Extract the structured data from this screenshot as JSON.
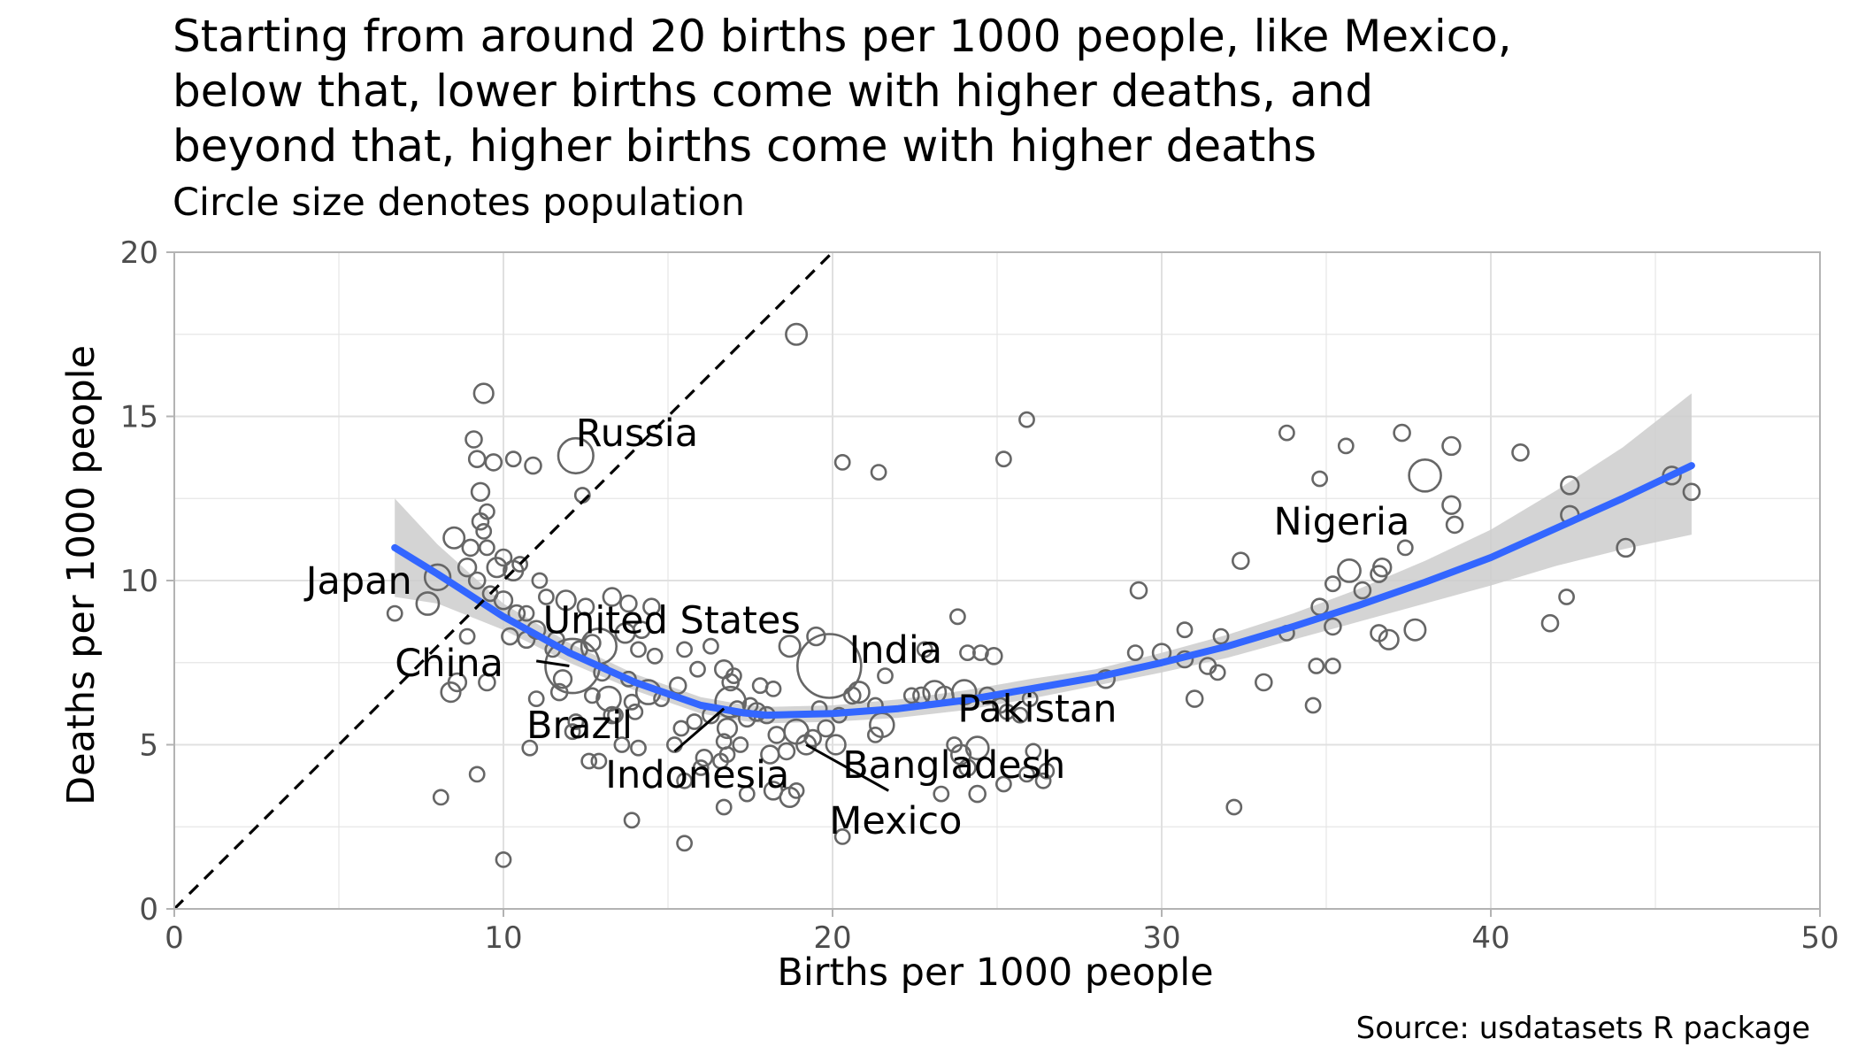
{
  "chart_data": {
    "type": "scatter",
    "title": "Starting from around 20 births per 1000 people, like Mexico, below that, lower births come with higher deaths, and beyond that, higher births come with higher deaths",
    "title_lines": [
      "Starting from around 20 births per 1000 people, like Mexico,",
      "below that, lower births come with higher deaths, and",
      "beyond that, higher births come with higher deaths"
    ],
    "subtitle": "Circle size denotes population",
    "caption": "Source: usdatasets R package",
    "xlabel": "Births per 1000 people",
    "ylabel": "Deaths per 1000 people",
    "xlim": [
      0,
      50
    ],
    "ylim": [
      0,
      20
    ],
    "xticks": [
      0,
      10,
      20,
      30,
      40,
      50
    ],
    "yticks": [
      0,
      5,
      10,
      15,
      20
    ],
    "grid": true,
    "reference_line": {
      "type": "y = x",
      "style": "dashed",
      "color": "#000000"
    },
    "colors": {
      "smooth": "#3366FF",
      "confidence_band": "#CCCCCC",
      "points": "#666666",
      "grid": "#E6E6E6"
    },
    "smooth": {
      "x": [
        6.7,
        8,
        10,
        12,
        14,
        16,
        17.3,
        18,
        20,
        22,
        24,
        26,
        28,
        30,
        32,
        34,
        36,
        38,
        40,
        42,
        44,
        46.1
      ],
      "y": [
        11.0,
        10.2,
        8.9,
        7.8,
        6.9,
        6.2,
        5.97,
        5.9,
        5.95,
        6.1,
        6.35,
        6.7,
        7.05,
        7.5,
        8.0,
        8.6,
        9.25,
        9.95,
        10.7,
        11.6,
        12.5,
        13.5
      ],
      "lower": [
        9.5,
        9.3,
        8.5,
        7.5,
        6.65,
        5.95,
        5.72,
        5.65,
        5.7,
        5.82,
        6.05,
        6.4,
        6.8,
        7.2,
        7.65,
        8.2,
        8.75,
        9.3,
        9.85,
        10.45,
        10.95,
        11.4
      ],
      "upper": [
        12.5,
        11.1,
        9.3,
        8.1,
        7.15,
        6.45,
        6.22,
        6.15,
        6.2,
        6.38,
        6.65,
        7.0,
        7.3,
        7.8,
        8.35,
        9.0,
        9.75,
        10.6,
        11.55,
        12.75,
        14.05,
        15.7
      ]
    },
    "labels": [
      {
        "text": "Russia",
        "x": 12.2,
        "y": 13.8,
        "lx": 12.2,
        "ly": 14.5,
        "anchor": "start"
      },
      {
        "text": "Japan",
        "x": 8.0,
        "y": 10.1,
        "lx": 4.0,
        "ly": 10.0,
        "anchor": "start"
      },
      {
        "text": "United States",
        "x": 12.9,
        "y": 8.0,
        "lx": 11.2,
        "ly": 8.8,
        "anchor": "start"
      },
      {
        "text": "China",
        "x": 12.1,
        "y": 7.4,
        "lx": 6.7,
        "ly": 7.5,
        "anchor": "start"
      },
      {
        "text": "Brazil",
        "x": 13.2,
        "y": 6.4,
        "lx": 10.7,
        "ly": 5.6,
        "anchor": "start"
      },
      {
        "text": "Indonesia",
        "x": 16.9,
        "y": 6.3,
        "lx": 13.1,
        "ly": 4.1,
        "anchor": "start"
      },
      {
        "text": "India",
        "x": 19.9,
        "y": 7.4,
        "lx": 20.5,
        "ly": 7.9,
        "anchor": "start"
      },
      {
        "text": "Pakistan",
        "x": 24.0,
        "y": 6.6,
        "lx": 23.8,
        "ly": 6.1,
        "anchor": "start"
      },
      {
        "text": "Bangladesh",
        "x": 18.9,
        "y": 5.4,
        "lx": 20.3,
        "ly": 4.4,
        "anchor": "start"
      },
      {
        "text": "Mexico",
        "x": 19.2,
        "y": 5.0,
        "lx": 19.9,
        "ly": 2.7,
        "anchor": "start"
      },
      {
        "text": "Nigeria",
        "x": 38.0,
        "y": 13.2,
        "lx": 33.4,
        "ly": 11.8,
        "anchor": "start"
      }
    ],
    "label_segments": [
      {
        "from": [
          11.0,
          7.55
        ],
        "to": [
          12.0,
          7.4
        ]
      },
      {
        "from": [
          15.2,
          4.8
        ],
        "to": [
          16.7,
          6.1
        ]
      },
      {
        "from": [
          19.2,
          5.0
        ],
        "to": [
          21.7,
          3.6
        ]
      }
    ],
    "points": [
      [
        9.4,
        15.7,
        1.2
      ],
      [
        18.9,
        17.5,
        1.3
      ],
      [
        12.2,
        13.8,
        2.2
      ],
      [
        38.0,
        13.2,
        2.0
      ],
      [
        19.9,
        7.4,
        4.0
      ],
      [
        12.1,
        7.4,
        3.4
      ],
      [
        12.9,
        8.0,
        2.2
      ],
      [
        16.9,
        6.3,
        1.9
      ],
      [
        13.2,
        6.4,
        1.5
      ],
      [
        24.0,
        6.6,
        1.5
      ],
      [
        18.9,
        5.4,
        1.5
      ],
      [
        19.2,
        5.0,
        1.2
      ],
      [
        8.0,
        10.1,
        1.6
      ],
      [
        7.7,
        9.3,
        1.4
      ],
      [
        6.7,
        9.0,
        0.9
      ],
      [
        9.1,
        14.3,
        1.0
      ],
      [
        9.2,
        13.7,
        1.0
      ],
      [
        9.7,
        13.6,
        1.0
      ],
      [
        10.3,
        13.7,
        0.9
      ],
      [
        10.9,
        13.5,
        1.0
      ],
      [
        12.4,
        12.6,
        0.9
      ],
      [
        9.3,
        12.7,
        1.1
      ],
      [
        9.5,
        12.1,
        0.9
      ],
      [
        9.3,
        11.8,
        1.0
      ],
      [
        9.4,
        11.5,
        0.9
      ],
      [
        8.5,
        11.3,
        1.3
      ],
      [
        9.0,
        11.0,
        1.0
      ],
      [
        8.9,
        10.4,
        1.1
      ],
      [
        9.2,
        10.0,
        1.0
      ],
      [
        9.8,
        10.4,
        1.2
      ],
      [
        10.0,
        10.7,
        1.0
      ],
      [
        10.3,
        10.3,
        1.2
      ],
      [
        10.5,
        10.5,
        0.9
      ],
      [
        9.5,
        11.0,
        0.9
      ],
      [
        10.0,
        9.4,
        1.1
      ],
      [
        10.4,
        9.0,
        1.0
      ],
      [
        10.2,
        8.3,
        1.0
      ],
      [
        10.7,
        8.2,
        1.0
      ],
      [
        8.9,
        8.3,
        0.9
      ],
      [
        9.6,
        9.6,
        0.9
      ],
      [
        11.1,
        10.0,
        0.9
      ],
      [
        11.3,
        9.5,
        0.9
      ],
      [
        11.9,
        9.4,
        1.2
      ],
      [
        12.5,
        9.2,
        1.0
      ],
      [
        13.3,
        9.5,
        1.1
      ],
      [
        13.8,
        9.3,
        1.0
      ],
      [
        14.5,
        9.2,
        1.0
      ],
      [
        11.0,
        8.5,
        1.1
      ],
      [
        11.6,
        8.2,
        1.0
      ],
      [
        12.3,
        7.9,
        1.0
      ],
      [
        12.7,
        8.1,
        1.0
      ],
      [
        13.7,
        8.4,
        1.2
      ],
      [
        14.2,
        8.5,
        1.0
      ],
      [
        14.1,
        7.9,
        0.9
      ],
      [
        14.6,
        7.7,
        0.9
      ],
      [
        15.5,
        7.9,
        0.9
      ],
      [
        16.3,
        8.0,
        0.9
      ],
      [
        13.0,
        7.2,
        1.0
      ],
      [
        13.8,
        7.0,
        0.9
      ],
      [
        14.4,
        6.6,
        1.5
      ],
      [
        14.8,
        6.4,
        0.9
      ],
      [
        15.3,
        6.8,
        1.0
      ],
      [
        15.9,
        7.3,
        0.9
      ],
      [
        16.7,
        7.3,
        1.1
      ],
      [
        16.9,
        6.9,
        1.0
      ],
      [
        11.8,
        7.0,
        1.1
      ],
      [
        13.3,
        5.9,
        1.0
      ],
      [
        12.1,
        5.4,
        0.9
      ],
      [
        12.6,
        4.5,
        0.9
      ],
      [
        12.9,
        4.5,
        0.9
      ],
      [
        13.6,
        5.0,
        0.9
      ],
      [
        13.9,
        6.3,
        0.9
      ],
      [
        15.4,
        5.5,
        0.9
      ],
      [
        15.8,
        5.7,
        0.9
      ],
      [
        16.3,
        5.9,
        1.0
      ],
      [
        16.7,
        5.1,
        0.9
      ],
      [
        16.8,
        5.5,
        1.2
      ],
      [
        17.2,
        5.0,
        0.9
      ],
      [
        17.4,
        5.8,
        1.0
      ],
      [
        17.7,
        6.0,
        1.1
      ],
      [
        15.5,
        3.9,
        0.9
      ],
      [
        16.1,
        4.6,
        1.0
      ],
      [
        16.6,
        4.5,
        0.9
      ],
      [
        17.4,
        3.5,
        0.9
      ],
      [
        17.8,
        6.8,
        0.9
      ],
      [
        18.2,
        6.7,
        0.9
      ],
      [
        18.0,
        5.9,
        1.0
      ],
      [
        18.3,
        5.3,
        1.0
      ],
      [
        18.6,
        4.8,
        1.0
      ],
      [
        18.1,
        4.7,
        1.1
      ],
      [
        18.2,
        3.6,
        1.1
      ],
      [
        18.7,
        3.4,
        1.2
      ],
      [
        18.9,
        3.6,
        0.9
      ],
      [
        18.7,
        8.0,
        1.3
      ],
      [
        19.5,
        8.3,
        1.1
      ],
      [
        19.6,
        6.1,
        0.9
      ],
      [
        19.8,
        5.5,
        1.0
      ],
      [
        20.1,
        5.0,
        1.2
      ],
      [
        20.2,
        5.9,
        0.9
      ],
      [
        20.6,
        6.5,
        1.0
      ],
      [
        20.8,
        6.6,
        1.3
      ],
      [
        21.3,
        6.2,
        0.9
      ],
      [
        21.5,
        5.6,
        1.5
      ],
      [
        21.6,
        7.1,
        0.9
      ],
      [
        21.3,
        5.3,
        0.9
      ],
      [
        20.3,
        2.2,
        0.9
      ],
      [
        20.3,
        13.6,
        0.9
      ],
      [
        21.4,
        13.3,
        0.9
      ],
      [
        16.7,
        3.1,
        0.9
      ],
      [
        22.8,
        7.9,
        0.9
      ],
      [
        22.7,
        6.5,
        1.0
      ],
      [
        23.1,
        6.6,
        1.4
      ],
      [
        23.4,
        6.5,
        1.1
      ],
      [
        23.7,
        5.0,
        0.9
      ],
      [
        23.9,
        4.7,
        1.2
      ],
      [
        24.1,
        4.3,
        1.0
      ],
      [
        24.4,
        4.9,
        1.4
      ],
      [
        24.4,
        3.5,
        1.0
      ],
      [
        23.3,
        3.5,
        0.9
      ],
      [
        23.8,
        8.9,
        0.9
      ],
      [
        24.1,
        7.8,
        0.9
      ],
      [
        24.5,
        7.8,
        0.9
      ],
      [
        24.9,
        7.7,
        1.0
      ],
      [
        25.1,
        6.2,
        0.9
      ],
      [
        25.3,
        6.0,
        0.9
      ],
      [
        25.2,
        3.8,
        0.9
      ],
      [
        25.7,
        5.9,
        0.9
      ],
      [
        25.9,
        4.1,
        0.9
      ],
      [
        26.1,
        4.8,
        0.9
      ],
      [
        26.4,
        3.9,
        0.9
      ],
      [
        26.5,
        4.2,
        0.9
      ],
      [
        25.2,
        13.7,
        0.9
      ],
      [
        25.9,
        14.9,
        0.9
      ],
      [
        28.3,
        7.0,
        1.1
      ],
      [
        29.2,
        7.8,
        0.9
      ],
      [
        29.3,
        9.7,
        1.0
      ],
      [
        30.0,
        7.8,
        1.1
      ],
      [
        30.7,
        7.6,
        1.0
      ],
      [
        30.7,
        8.5,
        0.9
      ],
      [
        31.0,
        6.4,
        1.0
      ],
      [
        31.4,
        7.4,
        1.0
      ],
      [
        31.7,
        7.2,
        0.9
      ],
      [
        31.8,
        8.3,
        0.9
      ],
      [
        32.2,
        3.1,
        0.9
      ],
      [
        32.4,
        10.6,
        1.0
      ],
      [
        33.1,
        6.9,
        1.0
      ],
      [
        33.8,
        8.4,
        0.9
      ],
      [
        33.8,
        14.5,
        0.9
      ],
      [
        34.6,
        6.2,
        0.9
      ],
      [
        34.7,
        7.4,
        0.9
      ],
      [
        34.8,
        9.2,
        1.0
      ],
      [
        34.8,
        13.1,
        0.9
      ],
      [
        35.2,
        9.9,
        0.9
      ],
      [
        35.2,
        8.6,
        1.0
      ],
      [
        35.2,
        7.4,
        0.9
      ],
      [
        35.6,
        14.1,
        0.9
      ],
      [
        35.7,
        10.3,
        1.4
      ],
      [
        36.1,
        9.7,
        1.0
      ],
      [
        36.6,
        8.4,
        1.0
      ],
      [
        36.6,
        10.2,
        1.0
      ],
      [
        36.7,
        10.4,
        1.1
      ],
      [
        36.9,
        8.2,
        1.2
      ],
      [
        37.3,
        14.5,
        1.0
      ],
      [
        37.4,
        11.0,
        0.9
      ],
      [
        37.7,
        8.5,
        1.3
      ],
      [
        38.8,
        14.1,
        1.1
      ],
      [
        38.8,
        12.3,
        1.1
      ],
      [
        38.9,
        11.7,
        1.0
      ],
      [
        40.9,
        13.9,
        1.0
      ],
      [
        41.8,
        8.7,
        1.0
      ],
      [
        42.3,
        9.5,
        0.9
      ],
      [
        42.4,
        12.0,
        1.1
      ],
      [
        42.4,
        12.9,
        1.1
      ],
      [
        44.1,
        11.0,
        1.1
      ],
      [
        45.5,
        13.2,
        1.1
      ],
      [
        46.1,
        12.7,
        1.0
      ],
      [
        8.1,
        3.4,
        0.9
      ],
      [
        9.2,
        4.1,
        0.9
      ],
      [
        10.0,
        1.5,
        0.9
      ],
      [
        10.8,
        4.9,
        0.9
      ],
      [
        13.9,
        2.7,
        0.9
      ],
      [
        15.5,
        2.0,
        0.9
      ],
      [
        17.1,
        6.1,
        0.9
      ],
      [
        16.0,
        4.3,
        0.9
      ],
      [
        8.4,
        6.6,
        1.2
      ],
      [
        8.6,
        6.9,
        1.1
      ],
      [
        9.5,
        6.9,
        1.0
      ],
      [
        11.0,
        6.4,
        0.9
      ],
      [
        11.5,
        7.9,
        0.9
      ],
      [
        10.7,
        9.0,
        0.9
      ],
      [
        14.0,
        6.0,
        0.9
      ],
      [
        12.7,
        6.5,
        0.9
      ],
      [
        13.4,
        5.9,
        0.9
      ],
      [
        17.5,
        6.2,
        0.9
      ],
      [
        19.4,
        5.2,
        1.0
      ],
      [
        22.4,
        6.5,
        0.9
      ],
      [
        24.7,
        6.5,
        1.0
      ],
      [
        26.0,
        6.4,
        0.9
      ],
      [
        17.0,
        7.1,
        0.9
      ],
      [
        15.2,
        5.0,
        0.9
      ],
      [
        16.8,
        4.7,
        0.9
      ],
      [
        14.1,
        4.9,
        0.9
      ],
      [
        12.2,
        5.7,
        0.9
      ],
      [
        11.7,
        6.6,
        1.0
      ]
    ]
  }
}
